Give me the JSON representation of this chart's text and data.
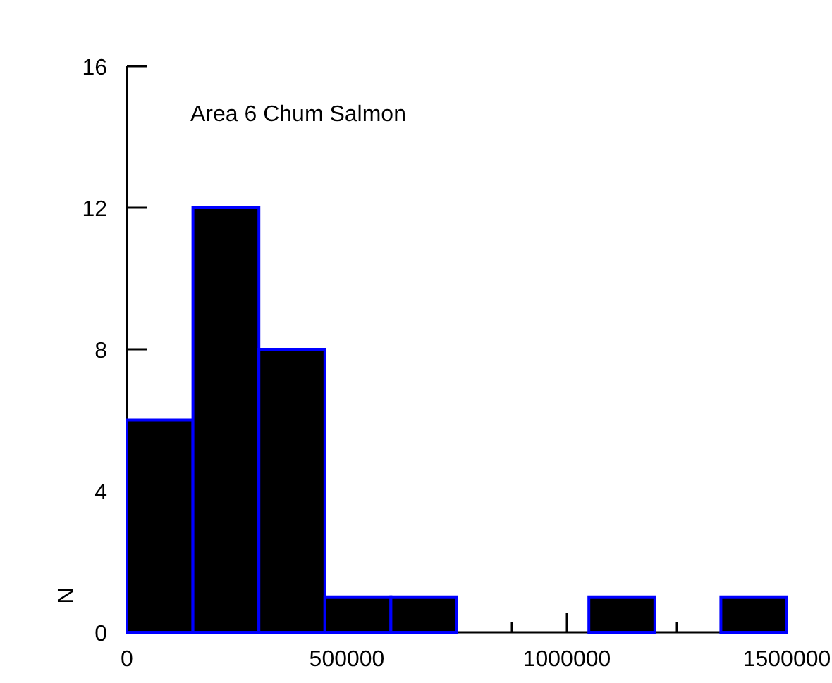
{
  "chart_data": {
    "type": "histogram",
    "title": "Area 6 Chum Salmon",
    "ylabel": "N",
    "bins": [
      0,
      150000,
      300000,
      450000,
      600000,
      750000,
      900000,
      1050000,
      1200000,
      1350000,
      1500000
    ],
    "values": [
      6,
      12,
      8,
      1,
      1,
      0,
      0,
      1,
      0,
      1
    ],
    "color": "#000000",
    "xlim": [
      0,
      1500000
    ],
    "ylim": [
      0,
      16
    ],
    "xticks": [
      0,
      {
        "value": 125000,
        "label": null
      },
      {
        "value": 250000,
        "label": null
      },
      {
        "value": 375000,
        "label": null
      },
      500000,
      {
        "value": 625000,
        "label": null
      },
      {
        "value": 750000,
        "label": null
      },
      {
        "value": 875000,
        "label": null
      },
      1000000,
      {
        "value": 1125000,
        "label": null
      },
      {
        "value": 1250000,
        "label": null
      },
      {
        "value": 1375000,
        "label": null
      },
      1500000
    ],
    "yticks": [
      0,
      4,
      8,
      12,
      16
    ],
    "grid": false
  }
}
